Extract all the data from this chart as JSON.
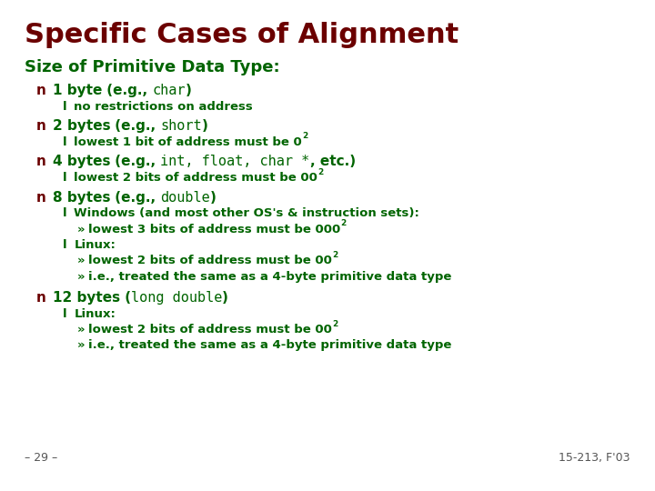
{
  "title": "Specific Cases of Alignment",
  "title_color": "#6B0000",
  "subtitle": "Size of Primitive Data Type:",
  "subtitle_color": "#006400",
  "background_color": "#FFFFFF",
  "bullet_color": "#6B0000",
  "dot_color": "#006400",
  "text_color": "#006400",
  "footer_left": "– 29 –",
  "footer_right": "15-213, F'03",
  "footer_color": "#555555",
  "title_fontsize": 22,
  "subtitle_fontsize": 13,
  "main_fontsize": 11,
  "sub_fontsize": 9.5,
  "super_fontsize": 6.5
}
